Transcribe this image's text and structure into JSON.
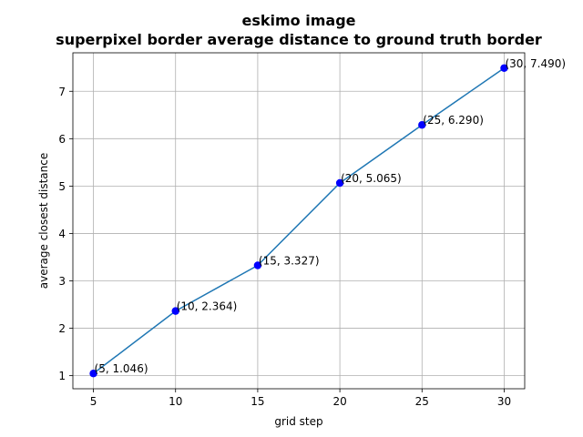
{
  "chart_data": {
    "type": "scatter",
    "title_lines": [
      "eskimo image",
      "superpixel border average distance to ground truth border"
    ],
    "xlabel": "grid step",
    "ylabel": "average closest distance",
    "xlim": [
      3.75,
      31.25
    ],
    "ylim": [
      0.724,
      7.812
    ],
    "xticks": [
      5,
      10,
      15,
      20,
      25,
      30
    ],
    "yticks": [
      1,
      2,
      3,
      4,
      5,
      6,
      7
    ],
    "grid": true,
    "line_color": "#1f77b4",
    "point_color": "#0000ff",
    "points": [
      {
        "x": 5,
        "y": 1.046,
        "label": "(5, 1.046)"
      },
      {
        "x": 10,
        "y": 2.364,
        "label": "(10, 2.364)"
      },
      {
        "x": 15,
        "y": 3.327,
        "label": "(15, 3.327)"
      },
      {
        "x": 20,
        "y": 5.065,
        "label": "(20, 5.065)"
      },
      {
        "x": 25,
        "y": 6.29,
        "label": "(25, 6.290)"
      },
      {
        "x": 30,
        "y": 7.49,
        "label": "(30, 7.490)"
      }
    ]
  }
}
